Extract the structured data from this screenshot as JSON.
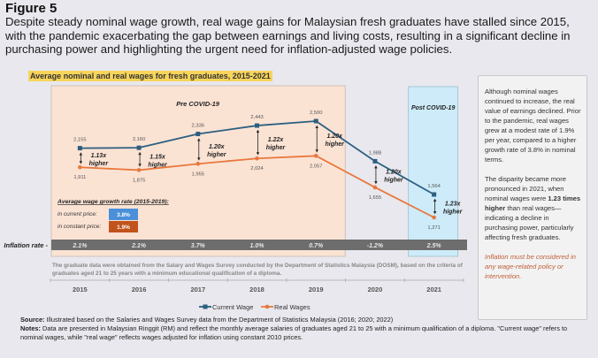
{
  "figure_label": "Figure 5",
  "headline": "Despite steady nominal wage growth, real wage gains for Malaysian fresh graduates have stalled since 2015, with the pandemic exacerbating the gap between earnings and living costs, resulting in a significant decline in purchasing power and highlighting the urgent need for inflation-adjusted wage policies.",
  "chart_data": {
    "type": "line",
    "title": "Average nominal and real wages for fresh graduates, 2015-2021",
    "categories": [
      "2015",
      "2016",
      "2017",
      "2018",
      "2019",
      "2020",
      "2021"
    ],
    "series": [
      {
        "name": "Current Wage",
        "color": "#2b5f80",
        "values": [
          2155,
          2160,
          2336,
          2443,
          2500,
          1988,
          1564
        ],
        "labels": [
          "2,155",
          "2,160",
          "2,336",
          "2,443",
          "2,500",
          "1,988",
          "1,564"
        ]
      },
      {
        "name": "Real Wages",
        "color": "#e8783c",
        "values": [
          1911,
          1875,
          1955,
          2024,
          2057,
          1655,
          1271
        ],
        "labels": [
          "1,911",
          "1,875",
          "1,955",
          "2,024",
          "2,057",
          "1,655",
          "1,271"
        ]
      }
    ],
    "ratio_labels": [
      "1.13x",
      "1.15x",
      "1.20x",
      "1.22x",
      "1.20x",
      "1.20x",
      "1.23x"
    ],
    "ratio_suffix": "higher",
    "periods": [
      {
        "label": "Pre COVID-19",
        "range": [
          "2015",
          "2019"
        ],
        "color": "#fbe3d4"
      },
      {
        "label": "Post COVID-19",
        "range": [
          "2021",
          "2021"
        ],
        "color": "#cdebf8"
      }
    ],
    "inflation": {
      "label": "Inflation rate -",
      "values": [
        "2.1%",
        "2.1%",
        "3.7%",
        "1.0%",
        "0.7%",
        "-1.2%",
        "2.5%"
      ]
    },
    "growth_box": {
      "title": "Average wage growth rate (2015-2019):",
      "rows": [
        {
          "label": "in current price:",
          "value": "3.8%",
          "color": "#4a90d9"
        },
        {
          "label": "in constant price:",
          "value": "1.9%",
          "color": "#c0541c"
        }
      ]
    },
    "ylim": [
      1000,
      2700
    ],
    "grid": false,
    "legend": "bottom"
  },
  "data_note": "The graduate data were obtained from the Salary and Wages Survey conducted by the Department of Statistics Malaysia (DOSM), based on the criteria of graduates aged 21 to 25 years with a minimum educational qualification of a diploma.",
  "side_panel": {
    "p1": "Although nominal wages continued to increase, the real value of earnings declined. Prior to the pandemic, real wages grew at a modest rate of 1.9% per year, compared to a higher growth rate of 3.8% in nominal terms.",
    "p2_a": "The disparity became more pronounced in 2021, when nominal wages were ",
    "p2_b": "1.23 times higher",
    "p2_c": " than real wages—indicating a decline in purchasing power, particularly affecting fresh graduates.",
    "p3": "Inflation must be considered in any wage-related policy or intervention."
  },
  "source": {
    "source_label": "Source:",
    "source_text": " Illustrated based on the Salaries and Wages Survey data from the Department of Statistics Malaysia (2016; 2020; 2022)",
    "notes_label": "Notes:",
    "notes_text": " Data are presented in Malaysian Ringgit (RM) and reflect the monthly average salaries of graduates aged 21 to 25 with a minimum qualification of a diploma. \"Current wage\" refers to nominal wages, while \"real wage\" reflects wages adjusted for inflation using constant 2010 prices."
  }
}
